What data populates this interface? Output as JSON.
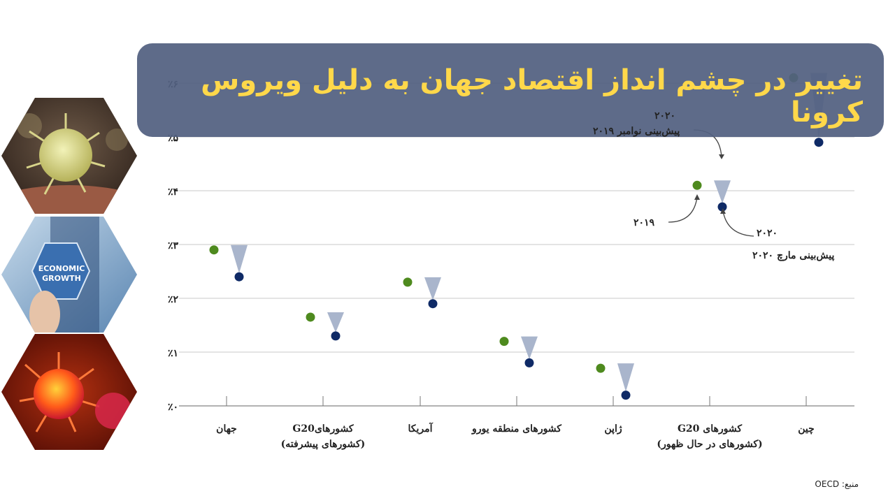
{
  "title": "تغییر در چشم انداز اقتصاد جهان به دلیل ویروس کرونا",
  "source": "منبع: OECD",
  "annotations": {
    "nov_year": "۲۰۲۰",
    "nov_label": "پیش‌بینی نوامبر ۲۰۱۹",
    "y2019": "۲۰۱۹",
    "mar_year": "۲۰۲۰",
    "mar_label": "پیش‌بینی مارچ ۲۰۲۰"
  },
  "images": {
    "top": "coronavirus-particle-image",
    "middle_text_1": "ECONOMIC",
    "middle_text_2": "GROWTH",
    "bottom": "red-coronavirus-image"
  },
  "colors": {
    "banner": "#526080",
    "title": "#ffd84a",
    "dot_2019": "#4e8a1e",
    "dot_2020": "#0f2a66",
    "triangle": "#a9b5cc",
    "grid": "#c8c8c8"
  },
  "chart_data": {
    "type": "scatter",
    "categories": [
      [
        "جهان"
      ],
      [
        "کشورهایG20",
        "(کشورهای پیشرفته)"
      ],
      [
        "آمریکا"
      ],
      [
        "کشورهای منطقه یورو"
      ],
      [
        "ژاپن"
      ],
      [
        "کشورهای G20",
        "(کشورهای در حال ظهور)"
      ],
      [
        "چین"
      ]
    ],
    "series": [
      {
        "name": "۲۰۱۹ پیش‌بینی نوامبر ۲۰۲۰",
        "values": [
          2.9,
          1.65,
          2.3,
          1.2,
          0.7,
          4.1,
          6.1
        ]
      },
      {
        "name": "پیش‌بینی مارچ ۲۰۲۰",
        "values": [
          2.4,
          1.3,
          1.9,
          0.8,
          0.2,
          3.7,
          4.9
        ]
      }
    ],
    "y_ticks": [
      "٪۰",
      "٪۱",
      "٪۲",
      "٪۳",
      "٪۴",
      "٪۵",
      "٪۶"
    ],
    "ylim": [
      0,
      6
    ],
    "grid": true
  }
}
